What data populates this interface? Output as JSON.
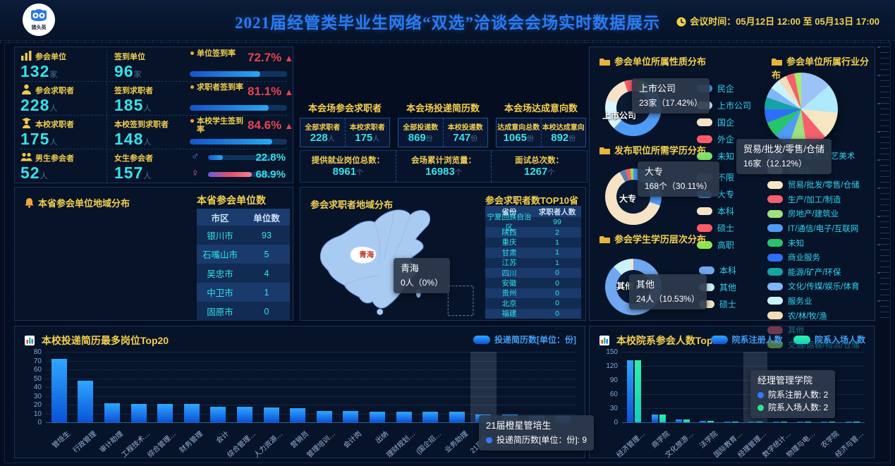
{
  "header": {
    "logo_text": "猎头英",
    "title": "2021届经管类毕业生网络“双选”洽谈会会场实时数据展示",
    "meeting_time_label": "会议时间：",
    "meeting_time": "05月12日 12:00 至 05月13日 17:00"
  },
  "kpi": {
    "rows": [
      {
        "icon": "units-icon",
        "l1": "参会单位",
        "v1": "132",
        "u1": "家",
        "l2": "签到单位",
        "v2": "96",
        "u2": "家",
        "rate_label": "单位签到率",
        "rate": "72.7%",
        "pct": 72.7
      },
      {
        "icon": "jobseeker-icon",
        "l1": "参会求职者",
        "v1": "228",
        "u1": "人",
        "l2": "签到求职者",
        "v2": "185",
        "u2": "人",
        "rate_label": "求职者签到率",
        "rate": "81.1%",
        "pct": 81.1
      },
      {
        "icon": "student-icon",
        "l1": "本校求职者",
        "v1": "175",
        "u1": "人",
        "l2": "本校签到求职者",
        "v2": "148",
        "u2": "人",
        "rate_label": "本校学生签到率",
        "rate": "84.6%",
        "pct": 84.6
      }
    ],
    "gender": {
      "icon": "people-icon",
      "l1": "男生参会者",
      "v1": "52",
      "u1": "人",
      "l2": "女生参会者",
      "v2": "157",
      "u2": "人",
      "male_pct": "22.8%",
      "male_val": 22.8,
      "female_pct": "68.9%",
      "female_val": 68.9
    }
  },
  "center": {
    "groups": [
      {
        "title": "本会场参会求职者",
        "items": [
          {
            "label": "全部求职者",
            "value": "228",
            "unit": "人"
          },
          {
            "label": "本校求职者",
            "value": "175",
            "unit": "人"
          }
        ]
      },
      {
        "title": "本会场投递简历数",
        "items": [
          {
            "label": "全部投递数",
            "value": "869",
            "unit": "份"
          },
          {
            "label": "本校投递数",
            "value": "747",
            "unit": "份"
          }
        ]
      },
      {
        "title": "本会场达成意向数",
        "items": [
          {
            "label": "达成意向总数",
            "value": "1065",
            "unit": "份"
          },
          {
            "label": "本校达成意向",
            "value": "892",
            "unit": "份"
          }
        ]
      }
    ],
    "totals": [
      {
        "label": "提供就业岗位总数：",
        "value": "8961",
        "unit": "个"
      },
      {
        "label": "会场累计浏览量：",
        "value": "16983",
        "unit": "个"
      },
      {
        "label": "面试总次数：",
        "value": "1267",
        "unit": "个"
      }
    ]
  },
  "province": {
    "title": "本省参会单位地域分布",
    "table_title": "本省参会单位数TOP10",
    "columns": [
      "市区",
      "单位数"
    ],
    "rows": [
      [
        "银川市",
        "93"
      ],
      [
        "石嘴山市",
        "5"
      ],
      [
        "吴忠市",
        "4"
      ],
      [
        "中卫市",
        "1"
      ],
      [
        "固原市",
        "0"
      ]
    ]
  },
  "map": {
    "title": "参会求职者地域分布",
    "highlight": "青海",
    "tooltip": {
      "title": "青海",
      "value": "0人（0%）"
    },
    "table_title": "参会求职者数TOP10省份",
    "columns": [
      "省份",
      "求职者人数"
    ],
    "rows": [
      [
        "宁夏回族自治区",
        "99"
      ],
      [
        "陕西",
        "2"
      ],
      [
        "重庆",
        "1"
      ],
      [
        "甘肃",
        "1"
      ],
      [
        "江苏",
        "1"
      ],
      [
        "四川",
        "0"
      ],
      [
        "安徽",
        "0"
      ],
      [
        "贵州",
        "0"
      ],
      [
        "北京",
        "0"
      ],
      [
        "福建",
        "0"
      ]
    ]
  },
  "chart_data": [
    {
      "type": "pie",
      "variant": "donut",
      "title": "参会单位所属性质分布",
      "unit": "家",
      "total": 132,
      "start_angle": 30,
      "legend": [
        {
          "label": "民企",
          "color": "#4f9bf8"
        },
        {
          "label": "上市公司",
          "color": "#d9f6ff"
        },
        {
          "label": "国企",
          "color": "#f6e3c5"
        },
        {
          "label": "外企",
          "color": "#fb5c68"
        },
        {
          "label": "未知",
          "color": "#7ce268"
        }
      ],
      "slices": [
        {
          "label": "民企",
          "value": 71,
          "color": "#4f9bf8"
        },
        {
          "label": "上市公司",
          "value": 23,
          "color": "#d9f6ff"
        },
        {
          "label": "国企",
          "value": 20,
          "color": "#f6e3c5"
        },
        {
          "label": "外企",
          "value": 12,
          "color": "#fb5c68"
        },
        {
          "label": "未知",
          "value": 6,
          "color": "#7ce268"
        }
      ],
      "slice_label": "上市公司",
      "tooltip": {
        "name": "上市公司",
        "value": "23家（17.42%）"
      }
    },
    {
      "type": "pie",
      "variant": "donut",
      "title": "发布职位所需学历分布",
      "unit": "个",
      "total": 558,
      "start_angle": 0,
      "legend": [
        {
          "label": "不限",
          "color": "#5d82aa"
        },
        {
          "label": "大专",
          "color": "#4f9bf8"
        },
        {
          "label": "本科",
          "color": "#f6e3c5"
        },
        {
          "label": "硕士",
          "color": "#fb5c68"
        },
        {
          "label": "高职",
          "color": "#8ae84f"
        }
      ],
      "slices": [
        {
          "label": "大专",
          "value": 168,
          "color": "#4f9bf8"
        },
        {
          "label": "本科",
          "value": 345,
          "color": "#f6e3c5"
        },
        {
          "label": "不限",
          "value": 20,
          "color": "#5d82aa"
        },
        {
          "label": "硕士",
          "value": 15,
          "color": "#fb5c68"
        },
        {
          "label": "高职",
          "value": 10,
          "color": "#8ae84f"
        }
      ],
      "slice_label": "大专",
      "tooltip": {
        "name": "大专",
        "value": "168个（30.11%）"
      }
    },
    {
      "type": "pie",
      "variant": "donut",
      "title": "参会学生学历层次分布",
      "unit": "人",
      "total": 228,
      "start_angle": 0,
      "legend": [
        {
          "label": "本科",
          "color": "#6fa7f0"
        },
        {
          "label": "其他",
          "color": "#c9f3fb"
        },
        {
          "label": "硕士",
          "color": "#f6e3c5"
        }
      ],
      "slices": [
        {
          "label": "本科",
          "value": 200,
          "color": "#6fa7f0"
        },
        {
          "label": "其他",
          "value": 24,
          "color": "#c9f3fb"
        },
        {
          "label": "硕士",
          "value": 4,
          "color": "#f6e3c5"
        }
      ],
      "slice_label": "其他",
      "tooltip": {
        "name": "其他",
        "value": "24人（10.53%）"
      }
    },
    {
      "type": "pie",
      "variant": "pie",
      "title": "参会单位所属行业分布",
      "unit": "家",
      "total": 132,
      "start_angle": 0,
      "legend": [
        {
          "label": "文体教育/工艺美术",
          "color": "#9cc3f7"
        },
        {
          "label": "金融业",
          "color": "#aeeafb"
        },
        {
          "label": "贸易/批发/零售/仓储",
          "color": "#f6e7c2"
        },
        {
          "label": "生产/加工/制造",
          "color": "#f4606c"
        },
        {
          "label": "房地产/建筑业",
          "color": "#9fe080"
        },
        {
          "label": "IT/通信/电子/互联网",
          "color": "#4f9bf5"
        },
        {
          "label": "未知",
          "color": "#27c46d"
        },
        {
          "label": "商业服务",
          "color": "#2f6ef6"
        },
        {
          "label": "能源/矿产/环保",
          "color": "#17a3a3"
        },
        {
          "label": "文化/传媒/娱乐/体育",
          "color": "#7eb6f7"
        },
        {
          "label": "服务业",
          "color": "#c9f3fb"
        },
        {
          "label": "农/林/牧/渔",
          "color": "#f3ddb6"
        },
        {
          "label": "其他",
          "color": "#f4606c"
        },
        {
          "label": "交通/运输/物流/仓储",
          "color": "#a4ec6c"
        }
      ],
      "slices": [
        {
          "label": "文体教育/工艺美术",
          "value": 18,
          "color": "#9cc3f7"
        },
        {
          "label": "金融业",
          "value": 17,
          "color": "#aeeafb"
        },
        {
          "label": "贸易/批发/零售/仓储",
          "value": 16,
          "color": "#f6e7c2"
        },
        {
          "label": "生产/加工/制造",
          "value": 12,
          "color": "#f4606c"
        },
        {
          "label": "房地产/建筑业",
          "value": 10,
          "color": "#9fe080"
        },
        {
          "label": "IT/通信/电子/互联网",
          "value": 9,
          "color": "#4f9bf5"
        },
        {
          "label": "未知",
          "value": 9,
          "color": "#27c46d"
        },
        {
          "label": "商业服务",
          "value": 8,
          "color": "#2f6ef6"
        },
        {
          "label": "能源/矿产/环保",
          "value": 7,
          "color": "#17a3a3"
        },
        {
          "label": "文化/传媒/娱乐/体育",
          "value": 6,
          "color": "#7eb6f7"
        },
        {
          "label": "服务业",
          "value": 6,
          "color": "#c9f3fb"
        },
        {
          "label": "农/林/牧/渔",
          "value": 5,
          "color": "#f3ddb6"
        },
        {
          "label": "其他",
          "value": 5,
          "color": "#f4606c"
        },
        {
          "label": "交通/运输/物流/仓储",
          "value": 4,
          "color": "#a4ec6c"
        }
      ],
      "tooltip": {
        "name": "贸易/批发/零售/仓储",
        "value": "16家（12.12%）"
      }
    },
    {
      "type": "bar",
      "title": "本校投递简历最多岗位Top20",
      "ylim": [
        0,
        80
      ],
      "ystep": 10,
      "categories": [
        "管培生",
        "行政管理",
        "审计助理",
        "工程技术…",
        "综合管理…",
        "财务管理",
        "会计",
        "综合管理…",
        "人力资源…",
        "营销员",
        "管理培训…",
        "会计岗",
        "出纳",
        "理财规划…",
        "(国企招…",
        "业务助理",
        "21届橙…",
        "2021…",
        "…",
        "…"
      ],
      "series": [
        {
          "name": "投递简历数[单位：份]",
          "values": [
            72,
            47,
            22,
            21,
            21,
            21,
            18,
            18,
            17,
            16,
            13,
            13,
            12,
            12,
            12,
            12,
            9,
            9,
            8,
            8
          ]
        }
      ],
      "hover_index": 16,
      "tooltip": {
        "title": "21届橙星管培生",
        "lines": [
          {
            "dot": "#2f7bff",
            "text": "投递简历数[单位：份]: 9"
          }
        ]
      }
    },
    {
      "type": "bar",
      "title": "本校院系参会人数Top10",
      "ylim": [
        0,
        150
      ],
      "ystep": 30,
      "categories": [
        "经济管理…",
        "商学院",
        "文化旅游…",
        "法学院",
        "国际教育…",
        "经理管理…",
        "数学统计…",
        "物理与电…",
        "农学院",
        "经济与管…"
      ],
      "series": [
        {
          "name": "院系注册人数",
          "values": [
            132,
            17,
            6,
            3,
            2,
            2,
            2,
            2,
            2,
            1
          ]
        },
        {
          "name": "院系入场人数",
          "values": [
            132,
            17,
            6,
            3,
            2,
            2,
            2,
            2,
            2,
            1
          ]
        }
      ],
      "hover_index": 5,
      "tooltip": {
        "title": "经理管理学院",
        "lines": [
          {
            "dot": "#2f7bff",
            "text": "院系注册人数: 2"
          },
          {
            "dot": "#2ee68a",
            "text": "院系入场人数: 2"
          }
        ]
      }
    }
  ]
}
